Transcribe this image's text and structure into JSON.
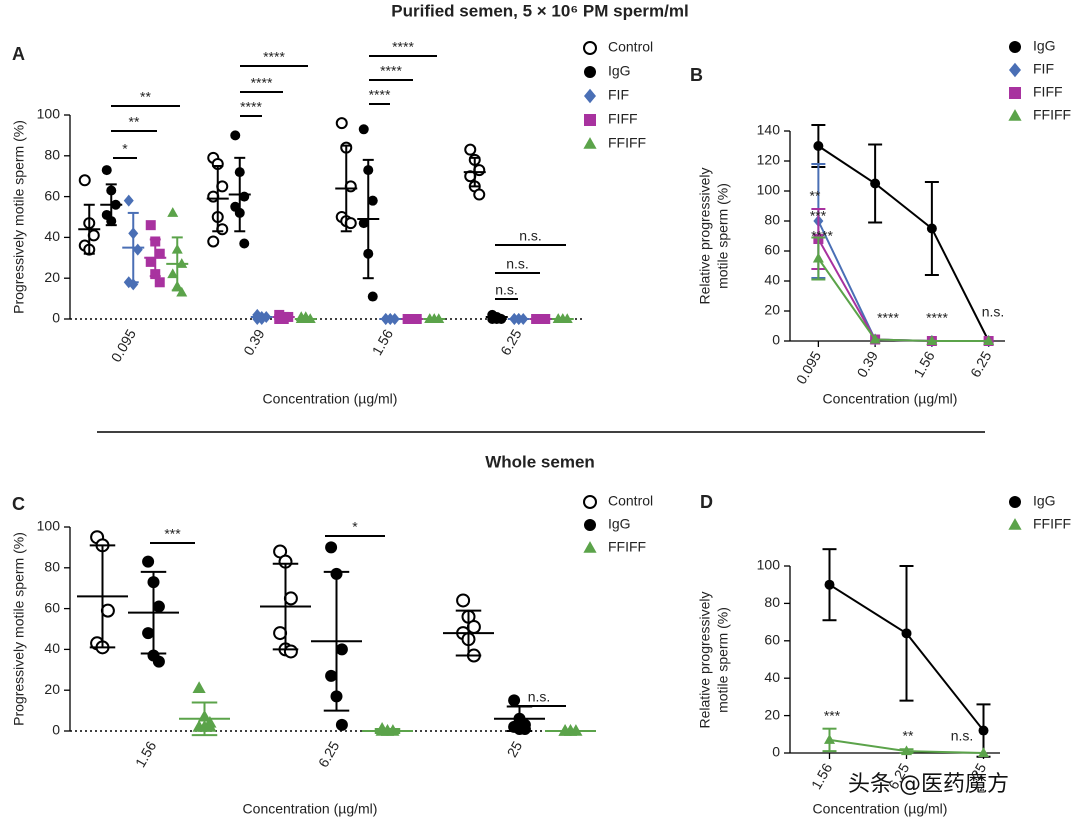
{
  "titles": [
    "Purified semen, 5 × 10⁶ PM sperm/ml",
    "Whole semen"
  ],
  "watermark": "头条 @医药魔方",
  "chart_data": [
    {
      "panel": "A",
      "type": "dot",
      "ylabel": [
        "Progressively motile sperm (%)"
      ],
      "xlabel": "Concentration (µg/ml)",
      "categories": [
        "0.095",
        "0.39",
        "1.56",
        "6.25"
      ],
      "ylim": [
        0,
        100
      ],
      "yticks": [
        0,
        20,
        40,
        60,
        80,
        100
      ],
      "zero_line": "dotted",
      "series": [
        {
          "name": "Control",
          "marker": "open-circle",
          "color": "#000000",
          "values": [
            [
              68,
              47,
              41,
              36,
              34
            ],
            [
              79,
              76,
              65,
              60,
              50,
              44,
              38
            ],
            [
              96,
              84,
              65,
              50,
              48,
              47
            ],
            [
              83,
              78,
              73,
              70,
              65,
              61
            ]
          ],
          "means": [
            44,
            59,
            64,
            72
          ],
          "sd": [
            12,
            16,
            21,
            7
          ]
        },
        {
          "name": "IgG",
          "marker": "circle",
          "color": "#000000",
          "values": [
            [
              73,
              63,
              56,
              51,
              48
            ],
            [
              90,
              72,
              60,
              55,
              52,
              37
            ],
            [
              93,
              73,
              58,
              47,
              32,
              11
            ],
            [
              2,
              1,
              0,
              0,
              0
            ]
          ],
          "means": [
            56,
            61,
            49,
            1
          ],
          "sd": [
            10,
            18,
            29,
            1
          ]
        },
        {
          "name": "FIF",
          "marker": "diamond",
          "color": "#4a6fb5",
          "values": [
            [
              58,
              42,
              34,
              18,
              17
            ],
            [
              2,
              1,
              1,
              0,
              0
            ],
            [
              0,
              0,
              0,
              0,
              0
            ],
            [
              0,
              0,
              0,
              0,
              0
            ]
          ],
          "means": [
            35,
            1,
            0,
            0
          ],
          "sd": [
            17,
            1,
            0,
            0
          ]
        },
        {
          "name": "FIFF",
          "marker": "square",
          "color": "#a8329f",
          "values": [
            [
              46,
              38,
              32,
              28,
              22,
              18
            ],
            [
              2,
              1,
              1,
              0,
              0
            ],
            [
              0,
              0,
              0,
              0,
              0
            ],
            [
              0,
              0,
              0,
              0,
              0
            ]
          ],
          "means": [
            30,
            1,
            0,
            0
          ],
          "sd": [
            9,
            1,
            0,
            0
          ]
        },
        {
          "name": "FFIFF",
          "marker": "triangle",
          "color": "#5ba34a",
          "values": [
            [
              52,
              34,
              27,
              22,
              16,
              13
            ],
            [
              1,
              1,
              0,
              0,
              0
            ],
            [
              0,
              0,
              0,
              0,
              0
            ],
            [
              0,
              0,
              0,
              0,
              0
            ]
          ],
          "means": [
            27,
            0,
            0,
            0
          ],
          "sd": [
            13,
            0,
            0,
            0
          ]
        }
      ],
      "annotations": [
        "*",
        "**",
        "**",
        "****",
        "****",
        "****",
        "****",
        "****",
        "****",
        "n.s.",
        "n.s.",
        "n.s."
      ]
    },
    {
      "panel": "B",
      "type": "line",
      "ylabel": [
        "Relative progressively",
        "motile sperm (%)"
      ],
      "xlabel": "Concentration (µg/ml)",
      "categories": [
        "0.095",
        "0.39",
        "1.56",
        "6.25"
      ],
      "ylim": [
        0,
        140
      ],
      "yticks": [
        0,
        20,
        40,
        60,
        80,
        100,
        120,
        140
      ],
      "series": [
        {
          "name": "IgG",
          "marker": "circle",
          "color": "#000000",
          "values": [
            130,
            105,
            75,
            0
          ],
          "errors": [
            14,
            26,
            31,
            0
          ]
        },
        {
          "name": "FIF",
          "marker": "diamond",
          "color": "#4a6fb5",
          "values": [
            80,
            1,
            0,
            0
          ],
          "errors": [
            38,
            0,
            0,
            0
          ]
        },
        {
          "name": "FIFF",
          "marker": "square",
          "color": "#a8329f",
          "values": [
            68,
            1,
            0,
            0
          ],
          "errors": [
            20,
            0,
            0,
            0
          ]
        },
        {
          "name": "FFIFF",
          "marker": "triangle",
          "color": "#5ba34a",
          "values": [
            55,
            1,
            0,
            0
          ],
          "errors": [
            14,
            0,
            0,
            0
          ]
        }
      ],
      "annotations": [
        "**",
        "***",
        "****",
        "****",
        "****",
        "n.s."
      ]
    },
    {
      "panel": "C",
      "type": "dot",
      "ylabel": [
        "Progressively motile sperm (%)"
      ],
      "xlabel": "Concentration (µg/ml)",
      "categories": [
        "1.56",
        "6.25",
        "25"
      ],
      "ylim": [
        0,
        100
      ],
      "yticks": [
        0,
        20,
        40,
        60,
        80,
        100
      ],
      "zero_line": "dotted",
      "series": [
        {
          "name": "Control",
          "marker": "open-circle",
          "color": "#000000",
          "values": [
            [
              95,
              91,
              59,
              43,
              41
            ],
            [
              88,
              83,
              65,
              48,
              40,
              39
            ],
            [
              64,
              56,
              51,
              48,
              45,
              37
            ]
          ],
          "means": [
            66,
            61,
            48
          ],
          "sd": [
            25,
            21,
            11
          ]
        },
        {
          "name": "IgG",
          "marker": "circle",
          "color": "#000000",
          "values": [
            [
              83,
              73,
              61,
              48,
              37,
              34
            ],
            [
              90,
              77,
              40,
              27,
              17,
              3
            ],
            [
              15,
              6,
              3,
              2,
              1,
              1
            ]
          ],
          "means": [
            58,
            44,
            6
          ],
          "sd": [
            20,
            34,
            6
          ]
        },
        {
          "name": "FFIFF",
          "marker": "triangle",
          "color": "#5ba34a",
          "values": [
            [
              21,
              7,
              4,
              2,
              2,
              2
            ],
            [
              1,
              0,
              0,
              0,
              0
            ],
            [
              0,
              0,
              0,
              0,
              0
            ]
          ],
          "means": [
            6,
            0,
            0
          ],
          "sd": [
            8,
            1,
            0
          ]
        }
      ],
      "annotations": [
        "***",
        "*",
        "n.s."
      ]
    },
    {
      "panel": "D",
      "type": "line",
      "ylabel": [
        "Relative progressively",
        "motile sperm (%)"
      ],
      "xlabel": "Concentration (µg/ml)",
      "categories": [
        "1.56",
        "6.25",
        "25"
      ],
      "ylim": [
        0,
        100
      ],
      "yticks": [
        0,
        20,
        40,
        60,
        80,
        100
      ],
      "series": [
        {
          "name": "IgG",
          "marker": "circle",
          "color": "#000000",
          "values": [
            90,
            64,
            12
          ],
          "errors": [
            19,
            36,
            14
          ]
        },
        {
          "name": "FFIFF",
          "marker": "triangle",
          "color": "#5ba34a",
          "values": [
            7,
            1,
            0
          ],
          "errors": [
            6,
            1,
            0
          ]
        }
      ],
      "annotations": [
        "***",
        "**",
        "n.s."
      ]
    }
  ]
}
